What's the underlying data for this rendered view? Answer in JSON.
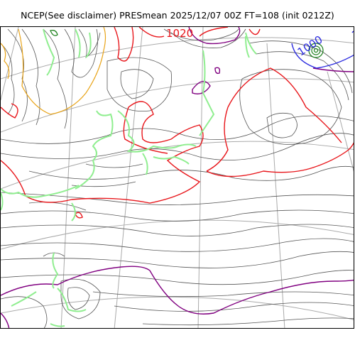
{
  "title": "NCEP(See disclaimer) PRESmean 2025/12/07 00Z FT=108 (init 0212Z)",
  "contour_labels": [
    {
      "text": "1020",
      "color": "#e8161b"
    },
    {
      "text": "1000",
      "color": "#2a2adf"
    }
  ],
  "colors": {
    "pressure_line": "#555555",
    "pressure_1020": "#e8161b",
    "pressure_1000": "#2a2adf",
    "pressure_1012": "#800080",
    "coastline": "#90ee90",
    "graticule": "#aaaaaa",
    "orange_line": "#e8a317",
    "low_center": "#1a7f1a"
  }
}
